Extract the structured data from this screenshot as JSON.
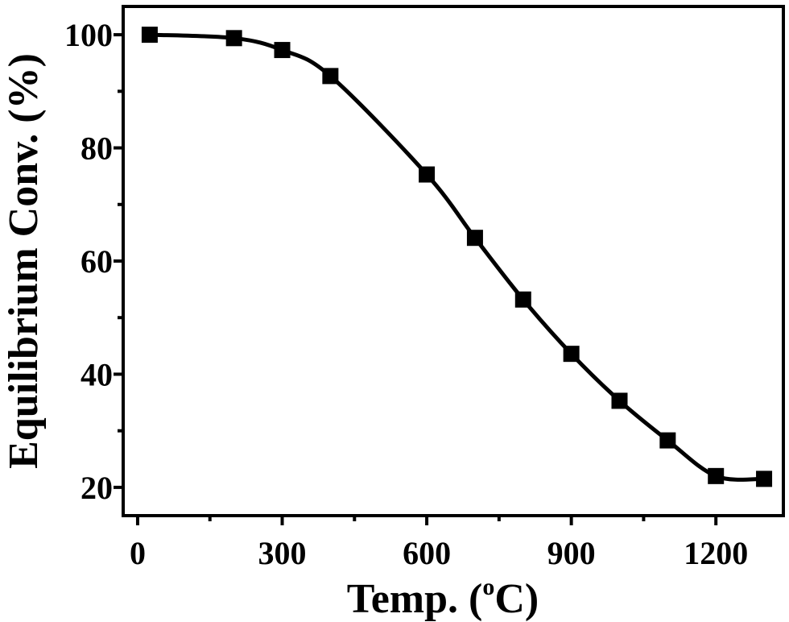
{
  "chart_data": {
    "type": "line",
    "title": "",
    "xlabel": "Temp. (",
    "xlabel_sup": "o",
    "xlabel_end": "C)",
    "ylabel": "Equilibrium Conv. (%)",
    "xlim": [
      -30,
      1340
    ],
    "ylim": [
      15,
      105
    ],
    "x_ticks": [
      0,
      300,
      600,
      900,
      1200
    ],
    "x_tick_labels": [
      "0",
      "300",
      "600",
      "900",
      "1200"
    ],
    "x_minor_ticks": [
      150,
      450,
      750,
      1050
    ],
    "y_ticks": [
      20,
      40,
      60,
      80,
      100
    ],
    "y_tick_labels": [
      "20",
      "40",
      "60",
      "80",
      "100"
    ],
    "y_minor_ticks": [
      30,
      50,
      70,
      90
    ],
    "grid": false,
    "marker": "square",
    "color": "#000000",
    "series": [
      {
        "x": [
          25,
          200,
          300,
          400,
          600,
          700,
          800,
          900,
          1000,
          1100,
          1200,
          1300
        ],
        "values": [
          100,
          99.4,
          97.3,
          92.7,
          75.3,
          64.1,
          53.2,
          43.6,
          35.3,
          28.3,
          22.0,
          21.5
        ]
      }
    ]
  }
}
